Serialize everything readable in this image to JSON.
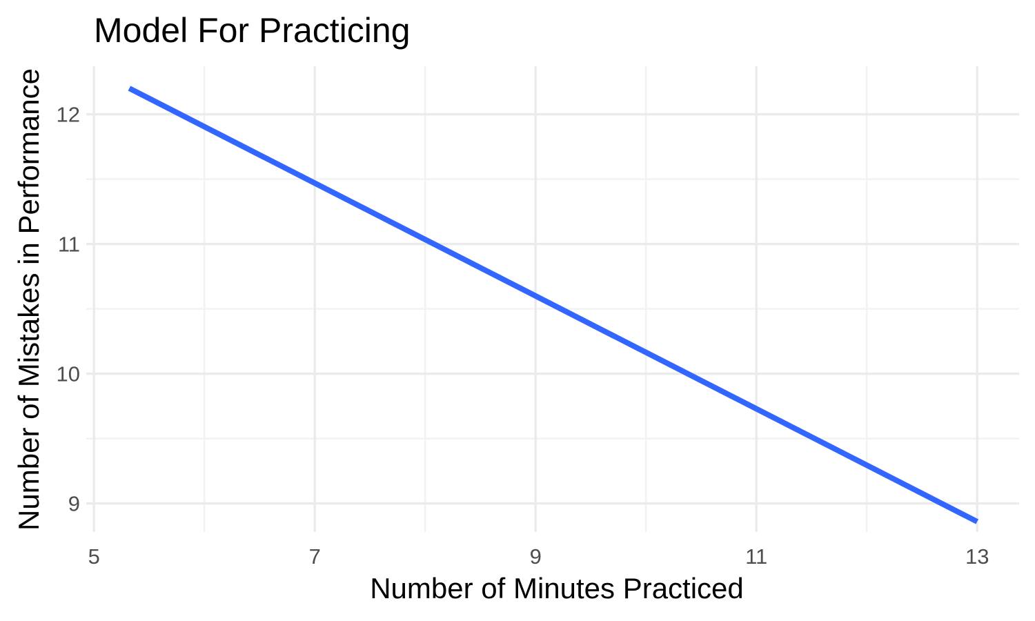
{
  "chart_data": {
    "type": "line",
    "title": "Model For Practicing",
    "xlabel": "Number of Minutes Practiced",
    "ylabel": "Number of Mistakes in Performance",
    "xlim": [
      4.93,
      13.38
    ],
    "ylim": [
      8.78,
      12.37
    ],
    "x_ticks": [
      5,
      7,
      9,
      11,
      13
    ],
    "x_tick_labels": [
      "5",
      "7",
      "9",
      "11",
      "13"
    ],
    "x_minor_ticks": [
      6,
      8,
      10,
      12
    ],
    "y_ticks": [
      9,
      10,
      11,
      12
    ],
    "y_tick_labels": [
      "9",
      "10",
      "11",
      "12"
    ],
    "y_minor_ticks": [
      9.5,
      10.5,
      11.5
    ],
    "grid": true,
    "legend": "none",
    "colors": {
      "line": "#3366ff",
      "grid_major": "#ebebeb",
      "grid_minor": "#f2f2f2",
      "tick_text": "#4d4d4d",
      "text": "#000000"
    },
    "series": [
      {
        "x": [
          5.32,
          13.0
        ],
        "y": [
          12.2,
          8.86
        ]
      }
    ]
  }
}
